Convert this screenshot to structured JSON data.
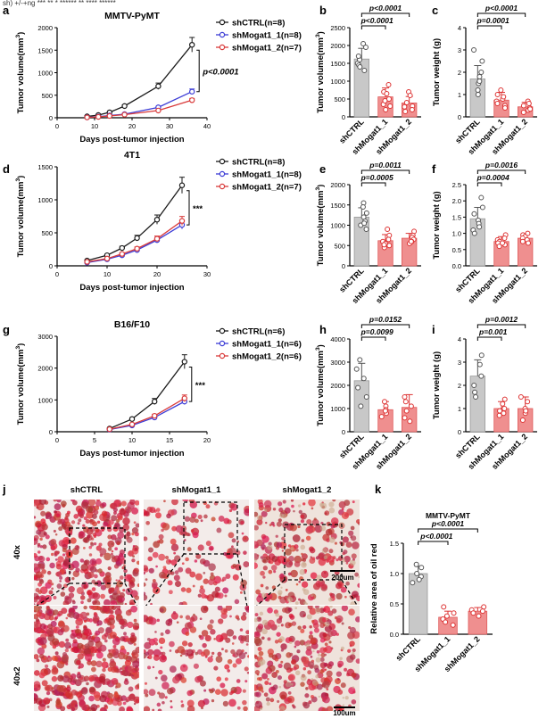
{
  "header_caption": "sh)  +/-+ng  *** ** * ****** ** ****  ******",
  "chart_data": [
    {
      "panel": "a",
      "type": "line",
      "title": "MMTV-PyMT",
      "xlabel": "Days post-tumor injection",
      "ylabel": "Tumor volume(mm3)",
      "xlim": [
        0,
        40
      ],
      "ylim": [
        0,
        2000
      ],
      "xticks": [
        "0",
        "10",
        "20",
        "30",
        "40"
      ],
      "yticks": [
        "0",
        "500",
        "1000",
        "1500",
        "2000"
      ],
      "x": [
        8,
        11,
        14,
        18,
        27,
        36
      ],
      "series": [
        {
          "name": "shCTRL(n=8)",
          "color": "#1a1a1a",
          "values": [
            30,
            60,
            120,
            260,
            700,
            1620
          ]
        },
        {
          "name": "shMogat1_1(n=8)",
          "color": "#3c3cd6",
          "values": [
            10,
            25,
            50,
            80,
            230,
            580
          ]
        },
        {
          "name": "shMogat1_2(n=7)",
          "color": "#d93a3a",
          "values": [
            8,
            20,
            40,
            70,
            160,
            390
          ]
        }
      ],
      "annotation": "p<0.0001"
    },
    {
      "panel": "b",
      "type": "bar",
      "ylabel": "Tumor volume(mm3)",
      "categories": [
        "shCTRL",
        "shMogat1_1",
        "shMogat1_2"
      ],
      "values": [
        1620,
        560,
        390
      ],
      "errors": [
        300,
        250,
        180
      ],
      "bar_colors": [
        "#c8c8c8",
        "#ef8f8f",
        "#ef8f8f"
      ],
      "ylim": [
        0,
        2500
      ],
      "yticks": [
        "0",
        "500",
        "1000",
        "1500",
        "2000",
        "2500"
      ],
      "points": [
        [
          2050,
          1950,
          1600,
          1500,
          1450,
          1300,
          1700,
          1400
        ],
        [
          900,
          700,
          650,
          500,
          300,
          200,
          350,
          450
        ],
        [
          700,
          600,
          400,
          300,
          150,
          200,
          280
        ]
      ],
      "pvals": [
        "p<0.0001",
        "p<0.0001"
      ]
    },
    {
      "panel": "c",
      "type": "bar",
      "ylabel": "Tumor weight (g)",
      "categories": [
        "shCTRL",
        "shMogat1_1",
        "shMogat1_2"
      ],
      "values": [
        1.7,
        0.75,
        0.45
      ],
      "errors": [
        0.6,
        0.35,
        0.2
      ],
      "bar_colors": [
        "#c8c8c8",
        "#ef8f8f",
        "#ef8f8f"
      ],
      "ylim": [
        0,
        4
      ],
      "yticks": [
        "0",
        "1",
        "2",
        "3",
        "4"
      ],
      "points": [
        [
          3.0,
          2.5,
          2.0,
          1.8,
          1.5,
          1.2,
          1.0,
          1.6
        ],
        [
          1.2,
          1.0,
          0.8,
          0.7,
          0.5,
          0.4,
          0.9,
          0.6
        ],
        [
          0.7,
          0.6,
          0.5,
          0.3,
          0.4,
          0.35,
          0.2
        ]
      ],
      "pvals": [
        "p<0.0001",
        "p=0.0001"
      ]
    },
    {
      "panel": "d",
      "type": "line",
      "title": "4T1",
      "xlabel": "Days post-tumor injection",
      "ylabel": "Tumor volume(mm3)",
      "xlim": [
        0,
        30
      ],
      "ylim": [
        0,
        1500
      ],
      "xticks": [
        "0",
        "10",
        "20",
        "30"
      ],
      "yticks": [
        "0",
        "500",
        "1000",
        "1500"
      ],
      "x": [
        6,
        10,
        13,
        16,
        20,
        25
      ],
      "series": [
        {
          "name": "shCTRL(n=8)",
          "color": "#1a1a1a",
          "values": [
            80,
            160,
            270,
            420,
            700,
            1220
          ]
        },
        {
          "name": "shMogat1_1(n=8)",
          "color": "#3c3cd6",
          "values": [
            50,
            100,
            160,
            240,
            390,
            620
          ]
        },
        {
          "name": "shMogat1_2(n=7)",
          "color": "#d93a3a",
          "values": [
            60,
            110,
            180,
            260,
            410,
            680
          ]
        }
      ],
      "annotation": "***"
    },
    {
      "panel": "e",
      "type": "bar",
      "ylabel": "Tumor volume(mm3)",
      "categories": [
        "shCTRL",
        "shMogat1_1",
        "shMogat1_2"
      ],
      "values": [
        1200,
        620,
        680
      ],
      "errors": [
        230,
        150,
        120
      ],
      "bar_colors": [
        "#c8c8c8",
        "#ef8f8f",
        "#ef8f8f"
      ],
      "ylim": [
        0,
        2000
      ],
      "yticks": [
        "0",
        "500",
        "1000",
        "1500",
        "2000"
      ],
      "points": [
        [
          1550,
          1450,
          1300,
          1200,
          1100,
          1000,
          900,
          1050
        ],
        [
          900,
          750,
          650,
          600,
          500,
          450,
          550,
          520
        ],
        [
          850,
          750,
          700,
          650,
          600,
          550,
          600
        ]
      ],
      "pvals": [
        "p=0.0011",
        "p=0.0005"
      ]
    },
    {
      "panel": "f",
      "type": "bar",
      "ylabel": "Tumor weight (g)",
      "categories": [
        "shCTRL",
        "shMogat1_1",
        "shMogat1_2"
      ],
      "values": [
        1.45,
        0.75,
        0.85
      ],
      "errors": [
        0.35,
        0.15,
        0.12
      ],
      "bar_colors": [
        "#c8c8c8",
        "#ef8f8f",
        "#ef8f8f"
      ],
      "ylim": [
        0,
        2.5
      ],
      "yticks": [
        "0.0",
        "0.5",
        "1.0",
        "1.5",
        "2.0",
        "2.5"
      ],
      "points": [
        [
          2.1,
          1.8,
          1.6,
          1.4,
          1.3,
          1.2,
          1.1,
          1.0
        ],
        [
          0.95,
          0.85,
          0.8,
          0.75,
          0.7,
          0.65,
          0.6,
          0.7
        ],
        [
          1.0,
          0.95,
          0.9,
          0.85,
          0.8,
          0.75,
          0.7
        ]
      ],
      "pvals": [
        "p=0.0016",
        "p=0.0004"
      ]
    },
    {
      "panel": "g",
      "type": "line",
      "title": "B16/F10",
      "xlabel": "Days post-tumor injection",
      "ylabel": "Tumor volume(mm3)",
      "xlim": [
        0,
        20
      ],
      "ylim": [
        0,
        3000
      ],
      "xticks": [
        "0",
        "5",
        "10",
        "15",
        "20"
      ],
      "yticks": [
        "0",
        "1000",
        "2000",
        "3000"
      ],
      "x": [
        7,
        10,
        13,
        17
      ],
      "series": [
        {
          "name": "shCTRL(n=6)",
          "color": "#1a1a1a",
          "values": [
            100,
            400,
            950,
            2200
          ]
        },
        {
          "name": "shMogat1_1(n=6)",
          "color": "#3c3cd6",
          "values": [
            70,
            200,
            450,
            950
          ]
        },
        {
          "name": "shMogat1_2(n=6)",
          "color": "#d93a3a",
          "values": [
            80,
            230,
            500,
            1050
          ]
        }
      ],
      "annotation": "***"
    },
    {
      "panel": "h",
      "type": "bar",
      "ylabel": "Tumor volume(mm3)",
      "categories": [
        "shCTRL",
        "shMogat1_1",
        "shMogat1_2"
      ],
      "values": [
        2200,
        950,
        1050
      ],
      "errors": [
        750,
        350,
        550
      ],
      "bar_colors": [
        "#c8c8c8",
        "#ef8f8f",
        "#ef8f8f"
      ],
      "ylim": [
        0,
        4000
      ],
      "yticks": [
        "0",
        "1000",
        "2000",
        "3000",
        "4000"
      ],
      "points": [
        [
          3100,
          2700,
          2300,
          1900,
          1500,
          1100
        ],
        [
          1300,
          1100,
          950,
          800,
          650,
          900
        ],
        [
          1500,
          1300,
          1100,
          900,
          600,
          450
        ]
      ],
      "pvals": [
        "p=0.0152",
        "p=0.0099"
      ]
    },
    {
      "panel": "i",
      "type": "bar",
      "ylabel": "Tumor weight (g)",
      "categories": [
        "shCTRL",
        "shMogat1_1",
        "shMogat1_2"
      ],
      "values": [
        2.4,
        1.0,
        1.0
      ],
      "errors": [
        0.7,
        0.3,
        0.5
      ],
      "bar_colors": [
        "#c8c8c8",
        "#ef8f8f",
        "#ef8f8f"
      ],
      "ylim": [
        0,
        4
      ],
      "yticks": [
        "0",
        "1",
        "2",
        "3",
        "4"
      ],
      "points": [
        [
          3.3,
          2.9,
          2.4,
          2.0,
          1.7,
          1.5
        ],
        [
          1.4,
          1.2,
          1.0,
          0.9,
          0.7,
          0.8
        ],
        [
          1.5,
          1.3,
          1.0,
          0.8,
          0.5,
          0.9
        ]
      ],
      "pvals": [
        "p=0.0012",
        "p=0.001"
      ]
    },
    {
      "panel": "k",
      "type": "bar",
      "title": "MMTV-PyMT",
      "ylabel": "Relative area of oil red",
      "categories": [
        "shCTRL",
        "shMogat1_1",
        "shMogat1_2"
      ],
      "values": [
        1.0,
        0.28,
        0.38
      ],
      "errors": [
        0.12,
        0.1,
        0.06
      ],
      "bar_colors": [
        "#c8c8c8",
        "#ef8f8f",
        "#ef8f8f"
      ],
      "ylim": [
        0,
        1.5
      ],
      "yticks": [
        "0.0",
        "0.5",
        "1.0",
        "1.5"
      ],
      "points": [
        [
          1.15,
          1.1,
          1.0,
          0.95,
          0.9,
          0.85
        ],
        [
          0.45,
          0.35,
          0.3,
          0.25,
          0.2,
          0.15
        ],
        [
          0.45,
          0.4,
          0.38,
          0.35,
          0.3
        ]
      ],
      "pvals": [
        "p<0.0001",
        "p<0.0001"
      ]
    }
  ],
  "micrographs": {
    "column_labels": [
      "shCTRL",
      "shMogat1_1",
      "shMogat1_2"
    ],
    "row_labels": [
      "40x",
      "40x2"
    ],
    "scale_top": "200um",
    "scale_bottom": "100um",
    "densities": [
      0.95,
      0.4,
      0.55
    ]
  },
  "panel_letters": [
    "a",
    "b",
    "c",
    "d",
    "e",
    "f",
    "g",
    "h",
    "i",
    "j",
    "k"
  ]
}
